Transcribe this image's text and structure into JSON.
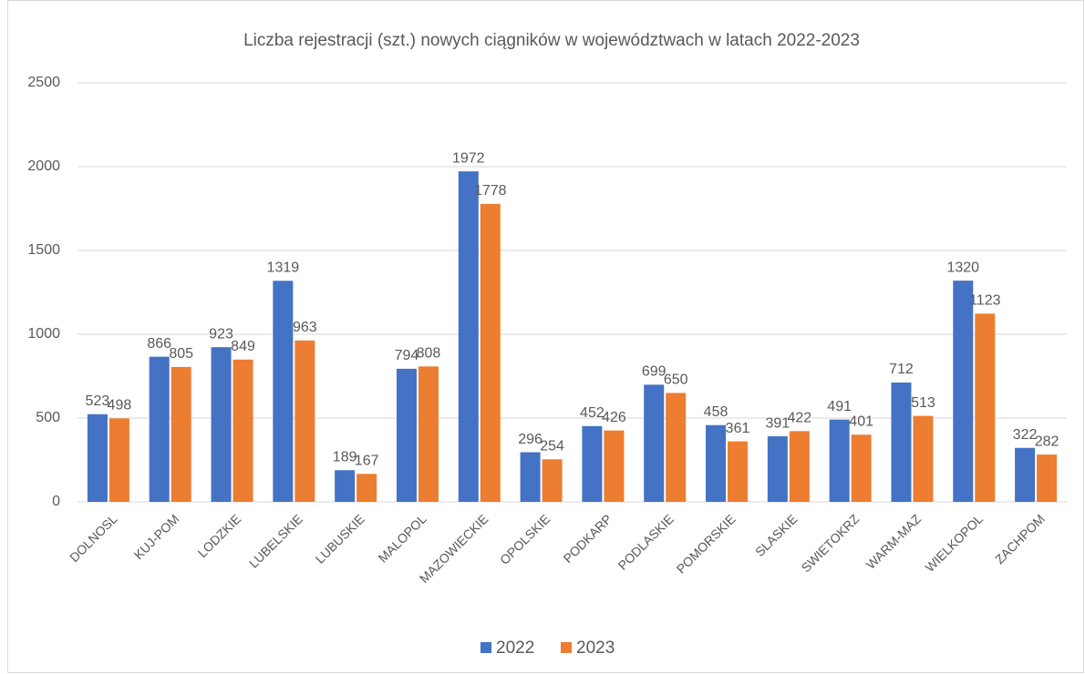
{
  "chart_data": {
    "type": "bar",
    "title": "Liczba rejestracji (szt.) nowych ciągników w województwach w latach 2022-2023",
    "categories": [
      "DOLNOSL",
      "KUJ-POM",
      "LODZKIE",
      "LUBELSKIE",
      "LUBUSKIE",
      "MALOPOL",
      "MAZOWIECKIE",
      "OPOLSKIE",
      "PODKARP",
      "PODLASKIE",
      "POMORSKIE",
      "SLASKIE",
      "SWIETOKRZ",
      "WARM-MAZ",
      "WIELKOPOL",
      "ZACHPOM"
    ],
    "series": [
      {
        "name": "2022",
        "color": "#4472c4",
        "values": [
          523,
          866,
          923,
          1319,
          189,
          794,
          1972,
          296,
          452,
          699,
          458,
          391,
          491,
          712,
          1320,
          322
        ]
      },
      {
        "name": "2023",
        "color": "#ed7d31",
        "values": [
          498,
          805,
          849,
          963,
          167,
          808,
          1778,
          254,
          426,
          650,
          361,
          422,
          401,
          513,
          1123,
          282
        ]
      }
    ],
    "ylim": [
      0,
      2500
    ],
    "yticks": [
      0,
      500,
      1000,
      1500,
      2000,
      2500
    ],
    "grid": true,
    "legend": "bottom"
  }
}
